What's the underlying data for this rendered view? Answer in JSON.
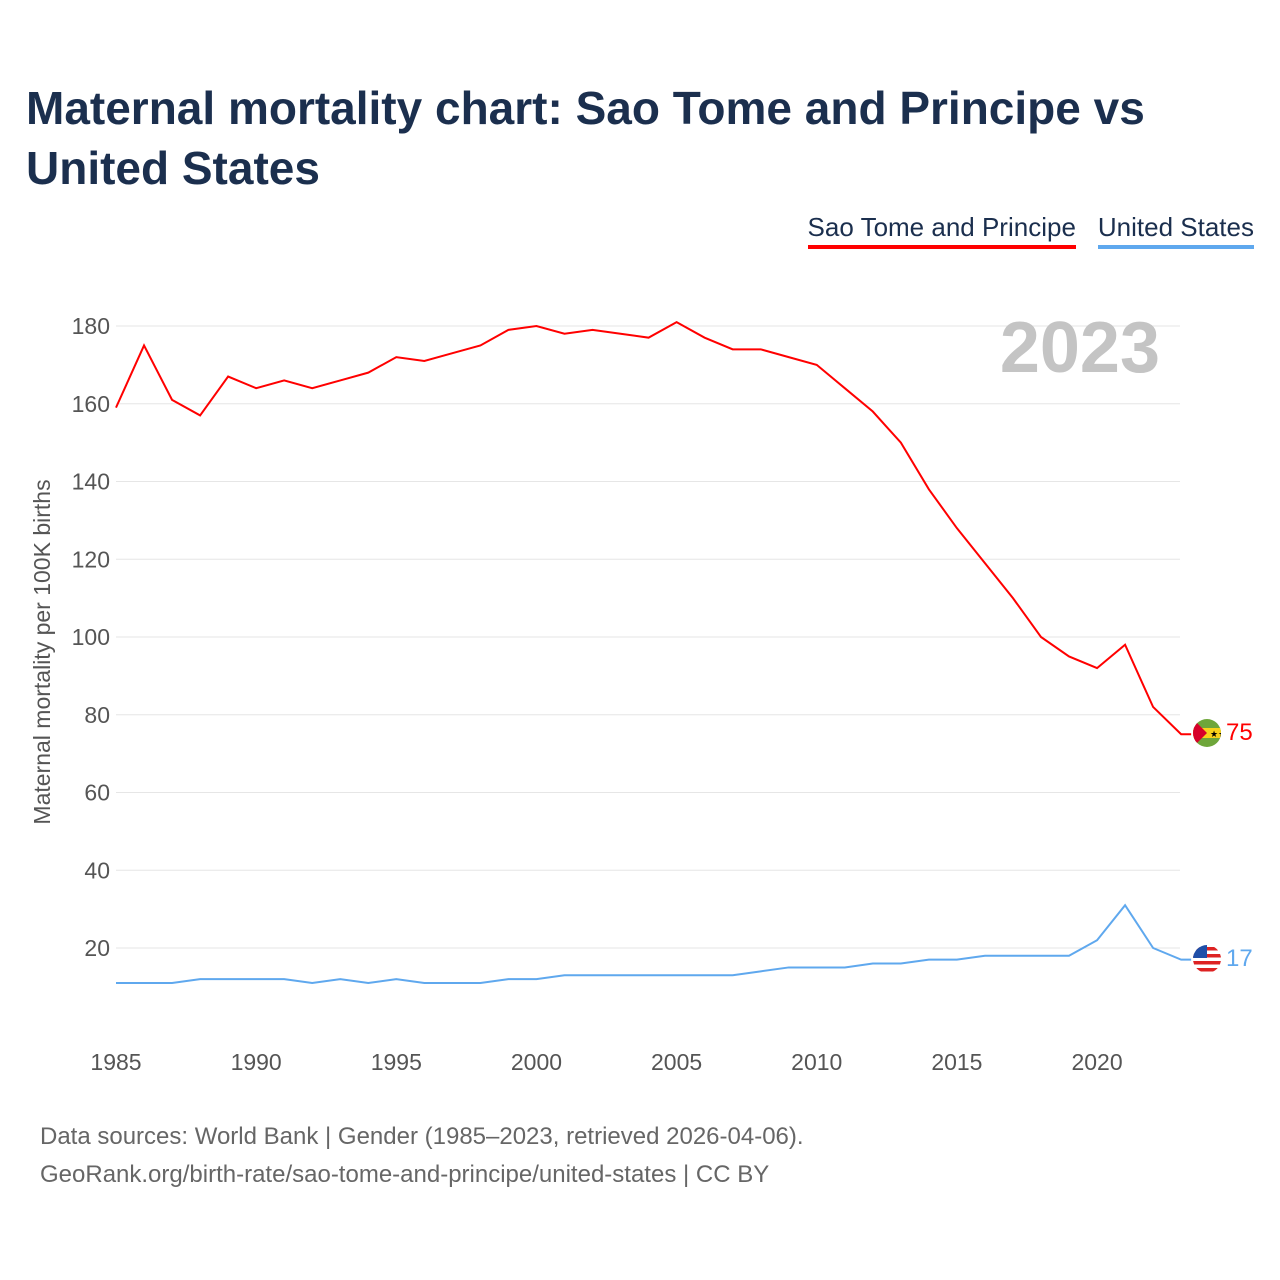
{
  "title": "Maternal mortality chart: Sao Tome and Principe vs United States",
  "source_line1": "Data sources: World Bank | Gender (1985–2023, retrieved 2026-04-06).",
  "source_line2": "GeoRank.org/birth-rate/sao-tome-and-principe/united-states | CC BY",
  "chart_data": {
    "type": "line",
    "title": "Maternal mortality chart: Sao Tome and Principe vs United States",
    "ylabel": "Maternal mortality per 100K births",
    "xlabel": "",
    "year_label": "2023",
    "ylim": [
      0,
      190
    ],
    "xlim": [
      1985,
      2023
    ],
    "yticks": [
      20,
      40,
      60,
      80,
      100,
      120,
      140,
      160,
      180
    ],
    "xticks": [
      1985,
      1990,
      1995,
      2000,
      2005,
      2010,
      2015,
      2020
    ],
    "grid": true,
    "legend_position": "top-right",
    "x": [
      1985,
      1986,
      1987,
      1988,
      1989,
      1990,
      1991,
      1992,
      1993,
      1994,
      1995,
      1996,
      1997,
      1998,
      1999,
      2000,
      2001,
      2002,
      2003,
      2004,
      2005,
      2006,
      2007,
      2008,
      2009,
      2010,
      2011,
      2012,
      2013,
      2014,
      2015,
      2016,
      2017,
      2018,
      2019,
      2020,
      2021,
      2022,
      2023
    ],
    "series": [
      {
        "name": "Sao Tome and Principe",
        "color": "#ff0000",
        "end_label": "75",
        "flag": "sao-tome-flag",
        "values": [
          159,
          175,
          161,
          157,
          167,
          164,
          166,
          164,
          166,
          168,
          172,
          171,
          173,
          175,
          179,
          180,
          178,
          179,
          178,
          177,
          181,
          177,
          174,
          174,
          172,
          170,
          164,
          158,
          150,
          138,
          128,
          119,
          110,
          100,
          95,
          92,
          98,
          82,
          75
        ]
      },
      {
        "name": "United States",
        "color": "#5fa8ee",
        "end_label": "17",
        "flag": "us-flag",
        "values": [
          11,
          11,
          11,
          12,
          12,
          12,
          12,
          11,
          12,
          11,
          12,
          11,
          11,
          11,
          12,
          12,
          13,
          13,
          13,
          13,
          13,
          13,
          13,
          14,
          15,
          15,
          15,
          16,
          16,
          17,
          17,
          18,
          18,
          18,
          18,
          22,
          31,
          20,
          17
        ]
      }
    ]
  }
}
